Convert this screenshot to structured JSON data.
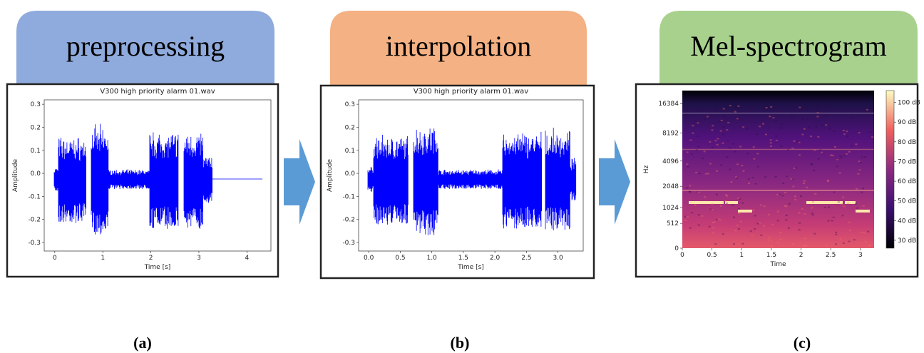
{
  "panels": [
    {
      "header": "preprocessing",
      "caption": "(a)",
      "plot": {
        "type": "waveform",
        "title": "V300 high priority alarm 01.wav",
        "xlabel": "Time [s]",
        "ylabel": "Amplitude",
        "xlim": [
          -0.22,
          4.5
        ],
        "ylim": [
          -0.337,
          0.319
        ],
        "xticks": [
          0,
          1,
          2,
          3,
          4
        ],
        "yticks": [
          0.3,
          0.2,
          0.1,
          {
            "value": 0,
            "label": "0.0"
          },
          -0.1,
          -0.2,
          -0.3
        ]
      }
    },
    {
      "header": "interpolation",
      "caption": "(b)",
      "plot": {
        "type": "waveform",
        "title": "V300 high priority alarm 01.wav",
        "xlabel": "Time [s]",
        "ylabel": "Amplitude",
        "xlim": [
          -0.16,
          3.4
        ],
        "ylim": [
          -0.337,
          0.319
        ],
        "xticks": [
          {
            "value": 0,
            "label": "0.0"
          },
          0.5,
          {
            "value": 1,
            "label": "1.0"
          },
          1.5,
          {
            "value": 2,
            "label": "2.0"
          },
          2.5,
          {
            "value": 3,
            "label": "3.0"
          }
        ],
        "yticks": [
          0.3,
          0.2,
          0.1,
          {
            "value": 0,
            "label": "0.0"
          },
          -0.1,
          -0.2,
          -0.3
        ]
      }
    },
    {
      "header": "Mel-spectrogram",
      "caption": "(c)",
      "plot": {
        "type": "spectrogram",
        "xlabel": "Time",
        "ylabel": "Hz",
        "yscale": "mel",
        "xlim": [
          0,
          3.23
        ],
        "ylim": [
          0,
          22050
        ],
        "xticks": [
          0,
          0.5,
          1,
          1.5,
          2,
          2.5,
          3
        ],
        "yticks": [
          0,
          512,
          1024,
          2048,
          4096,
          8192,
          16384
        ],
        "clim": [
          26,
          106
        ],
        "cticks": [
          {
            "value": 30,
            "label": "30 dB"
          },
          {
            "value": 40,
            "label": "40 dB"
          },
          {
            "value": 50,
            "label": "50 dB"
          },
          {
            "value": 60,
            "label": "60 dB"
          },
          {
            "value": 70,
            "label": "70 dB"
          },
          {
            "value": 80,
            "label": "80 dB"
          },
          {
            "value": 90,
            "label": "90 dB"
          },
          {
            "value": 100,
            "label": "100 dB"
          }
        ]
      }
    }
  ]
}
